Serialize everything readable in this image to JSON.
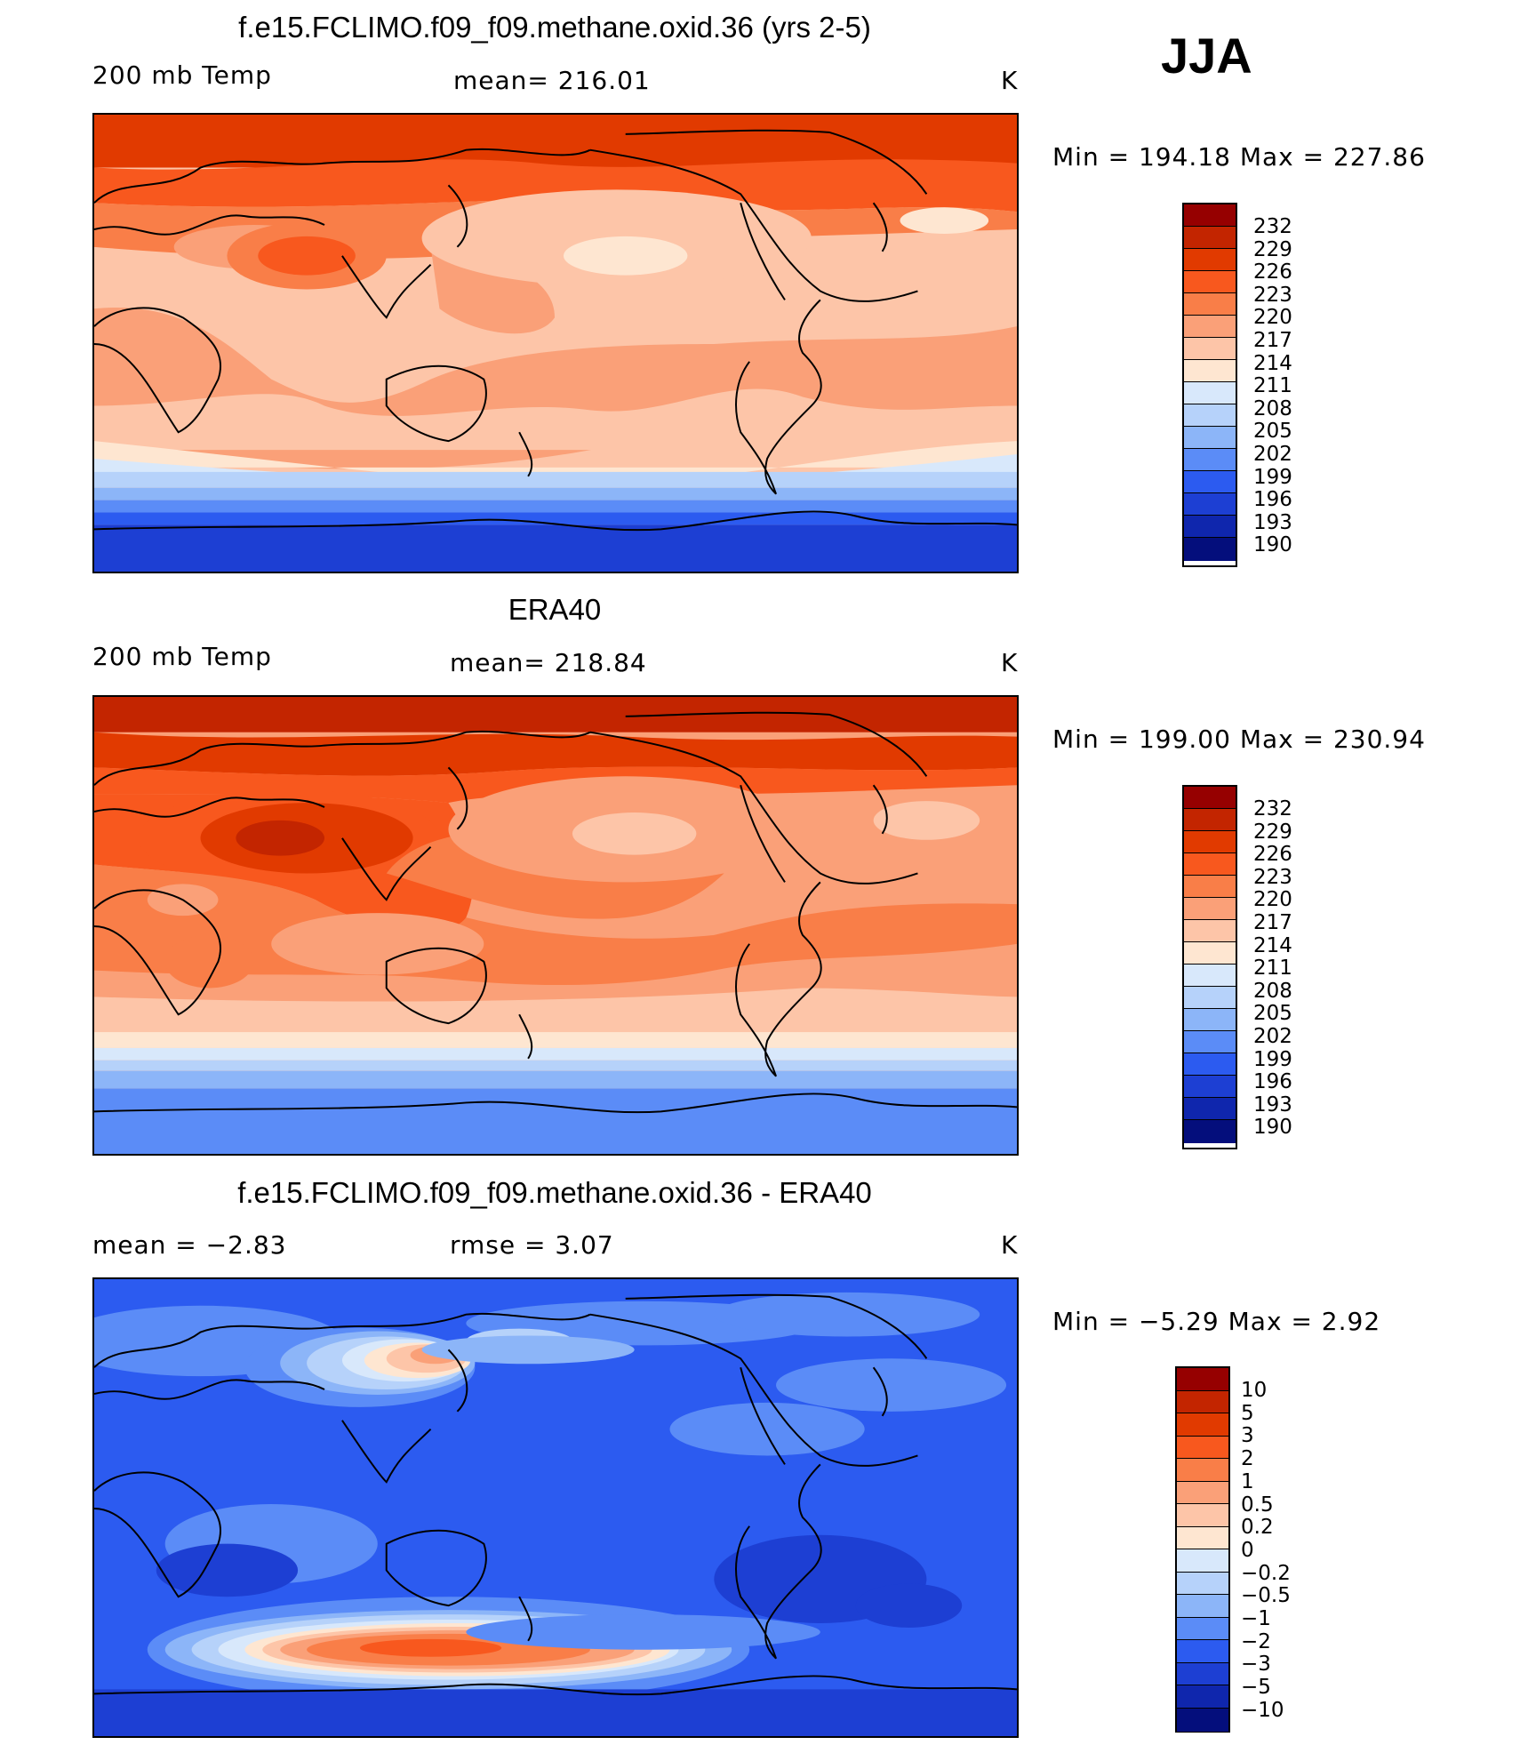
{
  "season": "JJA",
  "panels": [
    {
      "title": "f.e15.FCLIMO.f09_f09.methane.oxid.36 (yrs 2-5)",
      "left_label": "200 mb Temp",
      "center_label": "mean=  216.01",
      "right_label": "K",
      "minmax": "Min  =  194.18  Max  =  227.86",
      "colorbar": {
        "labels": [
          "232",
          "229",
          "226",
          "223",
          "220",
          "217",
          "214",
          "211",
          "208",
          "205",
          "202",
          "199",
          "196",
          "193",
          "190"
        ],
        "colors": [
          "#960000",
          "#c32500",
          "#e13a00",
          "#f8581e",
          "#f97e48",
          "#faa078",
          "#fdc5a8",
          "#fee6d1",
          "#d8e8fb",
          "#b6d2fa",
          "#8cb5f8",
          "#5b8cf7",
          "#2c5bf0",
          "#1d3fd3",
          "#0f26ad",
          "#040e7c"
        ]
      }
    },
    {
      "title": "ERA40",
      "left_label": "200 mb Temp",
      "center_label": "mean=  218.84",
      "right_label": "K",
      "minmax": "Min  =  199.00  Max  =  230.94",
      "colorbar": {
        "labels": [
          "232",
          "229",
          "226",
          "223",
          "220",
          "217",
          "214",
          "211",
          "208",
          "205",
          "202",
          "199",
          "196",
          "193",
          "190"
        ],
        "colors": [
          "#960000",
          "#c32500",
          "#e13a00",
          "#f8581e",
          "#f97e48",
          "#faa078",
          "#fdc5a8",
          "#fee6d1",
          "#d8e8fb",
          "#b6d2fa",
          "#8cb5f8",
          "#5b8cf7",
          "#2c5bf0",
          "#1d3fd3",
          "#0f26ad",
          "#040e7c"
        ]
      }
    },
    {
      "title": "f.e15.FCLIMO.f09_f09.methane.oxid.36 - ERA40",
      "left_label": "mean  =    −2.83",
      "center_label": "rmse  =     3.07",
      "right_label": "K",
      "minmax": "Min  =    −5.29  Max  =      2.92",
      "colorbar": {
        "labels": [
          "10",
          "5",
          "3",
          "2",
          "1",
          "0.5",
          "0.2",
          "0",
          "−0.2",
          "−0.5",
          "−1",
          "−2",
          "−3",
          "−5",
          "−10"
        ],
        "colors": [
          "#960000",
          "#c32500",
          "#e13a00",
          "#f8581e",
          "#f97e48",
          "#faa078",
          "#fdc5a8",
          "#fee6d1",
          "#d8e8fb",
          "#b6d2fa",
          "#8cb5f8",
          "#5b8cf7",
          "#2c5bf0",
          "#1d3fd3",
          "#0f26ad",
          "#040e7c"
        ]
      }
    }
  ]
}
